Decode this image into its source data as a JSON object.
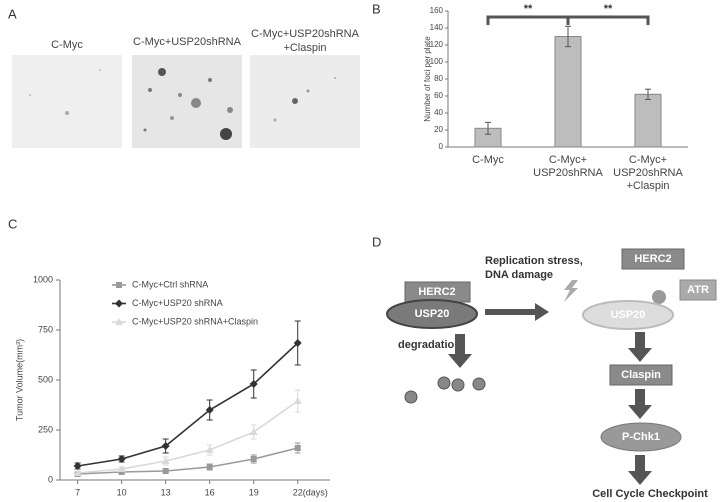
{
  "panel_a": {
    "label": "A",
    "images": [
      {
        "caption": [
          "C-Myc"
        ]
      },
      {
        "caption": [
          "C-Myc+USP20shRNA"
        ]
      },
      {
        "caption": [
          "C-Myc+USP20shRNA",
          "+Claspin"
        ]
      }
    ]
  },
  "chart_data": [
    {
      "type": "bar",
      "label": "B",
      "y_label": "Number of foci per plate",
      "categories": [
        [
          "C-Myc"
        ],
        [
          "C-Myc+",
          "USP20shRNA"
        ],
        [
          "C-Myc+",
          "USP20shRNA",
          "+Claspin"
        ]
      ],
      "values": [
        22,
        130,
        62
      ],
      "errors": [
        7,
        12,
        6
      ],
      "color": "#bdbdbd",
      "significance": [
        "**",
        "**"
      ],
      "ylim": [
        0,
        160
      ],
      "yticks": [
        0,
        20,
        40,
        60,
        80,
        100,
        120,
        140,
        160
      ]
    },
    {
      "type": "line",
      "label": "C",
      "y_label": "Tumor Volume(mm³)",
      "x": [
        7,
        10,
        13,
        16,
        19,
        22
      ],
      "xlim": [
        5.8,
        24.2
      ],
      "xticks": [
        7,
        10,
        13,
        16,
        19,
        {
          "value": 22,
          "label": "22(days)"
        }
      ],
      "ylim": [
        0,
        1000
      ],
      "yticks": [
        0,
        250,
        500,
        750,
        1000
      ],
      "legend": "upper left",
      "series": [
        {
          "name": "C-Myc+Ctrl shRNA",
          "color": "#9a9a9a",
          "marker": "square",
          "values": [
            30,
            40,
            45,
            65,
            105,
            160
          ],
          "errors": [
            8,
            8,
            10,
            15,
            20,
            25
          ]
        },
        {
          "name": "C-Myc+USP20 shRNA",
          "color": "#333333",
          "marker": "diamond",
          "values": [
            70,
            105,
            170,
            350,
            480,
            685
          ],
          "errors": [
            15,
            15,
            35,
            50,
            70,
            110
          ]
        },
        {
          "name": "C-Myc+USP20 shRNA+Claspin",
          "color": "#d9d9d9",
          "marker": "triangle",
          "values": [
            35,
            55,
            95,
            150,
            240,
            395
          ],
          "errors": [
            8,
            10,
            20,
            25,
            35,
            55
          ]
        }
      ]
    }
  ],
  "diagram": {
    "label": "D",
    "left_herc2": "HERC2",
    "left_usp20": "USP20",
    "degradation": "degradation",
    "stimulus": [
      "Replication stress,",
      "DNA damage"
    ],
    "right_herc2": "HERC2",
    "atr": "ATR",
    "right_usp20": "USP20",
    "claspin": "Claspin",
    "pchk1": "P-Chk1",
    "outcome": "Cell Cycle Checkpoint"
  }
}
